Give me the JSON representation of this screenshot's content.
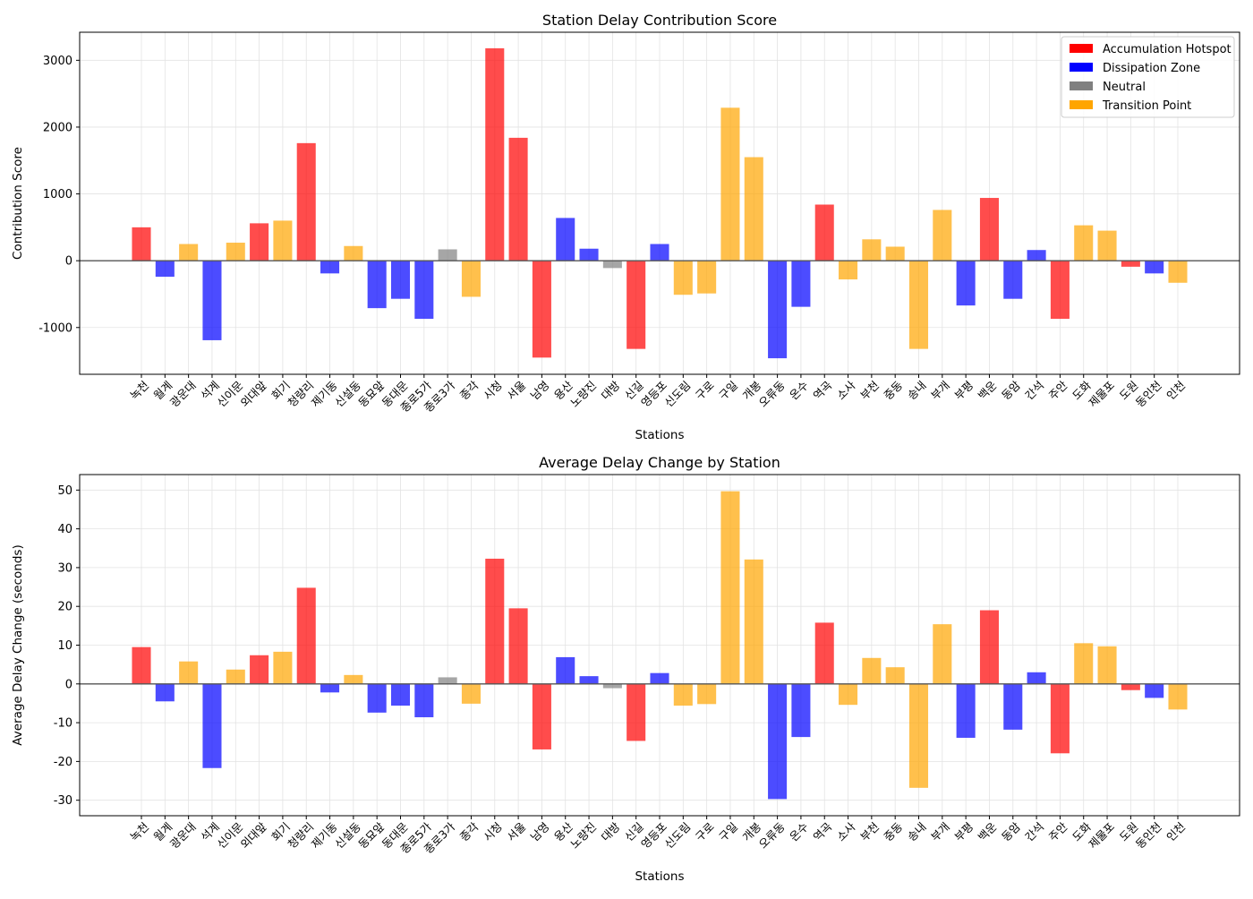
{
  "stations": [
    "녹천",
    "월계",
    "광운대",
    "석계",
    "신이문",
    "외대앞",
    "회기",
    "청량리",
    "제기동",
    "신설동",
    "동묘앞",
    "동대문",
    "종로5가",
    "종로3가",
    "종각",
    "시청",
    "서울",
    "남영",
    "용산",
    "노량진",
    "대방",
    "신길",
    "영등포",
    "신도림",
    "구로",
    "구일",
    "개봉",
    "오류동",
    "온수",
    "역곡",
    "소사",
    "부천",
    "중동",
    "송내",
    "부개",
    "부평",
    "백운",
    "동암",
    "간석",
    "주안",
    "도화",
    "제물포",
    "도원",
    "동인천",
    "인천"
  ],
  "categories": [
    "hotspot",
    "dissipation",
    "transition",
    "dissipation",
    "transition",
    "hotspot",
    "transition",
    "hotspot",
    "dissipation",
    "transition",
    "dissipation",
    "dissipation",
    "dissipation",
    "neutral",
    "transition",
    "hotspot",
    "hotspot",
    "hotspot",
    "dissipation",
    "dissipation",
    "neutral",
    "hotspot",
    "dissipation",
    "transition",
    "transition",
    "transition",
    "transition",
    "dissipation",
    "dissipation",
    "hotspot",
    "transition",
    "transition",
    "transition",
    "transition",
    "transition",
    "dissipation",
    "hotspot",
    "dissipation",
    "dissipation",
    "hotspot",
    "transition",
    "transition",
    "hotspot",
    "dissipation",
    "transition"
  ],
  "legend": [
    {
      "key": "hotspot",
      "label": "Accumulation Hotspot",
      "color": "#ff0000"
    },
    {
      "key": "dissipation",
      "label": "Dissipation Zone",
      "color": "#0000ff"
    },
    {
      "key": "neutral",
      "label": "Neutral",
      "color": "#808080"
    },
    {
      "key": "transition",
      "label": "Transition Point",
      "color": "#ffa500"
    }
  ],
  "chart_data": [
    {
      "type": "bar",
      "title": "Station Delay Contribution Score",
      "xlabel": "Stations",
      "ylabel": "Contribution Score",
      "ylim": [
        -1700,
        3420
      ],
      "yticks": [
        -1000,
        0,
        1000,
        2000,
        3000
      ],
      "ytick_labels": [
        "-1000",
        "0",
        "1000",
        "2000",
        "3000"
      ],
      "grid": true,
      "legend_position": "top-right",
      "values": [
        500,
        -240,
        250,
        -1190,
        270,
        560,
        600,
        1760,
        -190,
        220,
        -710,
        -570,
        -870,
        170,
        -540,
        3180,
        1840,
        -1450,
        640,
        180,
        -110,
        -1320,
        250,
        -510,
        -490,
        2290,
        1550,
        -1460,
        -690,
        840,
        -280,
        320,
        210,
        -1320,
        760,
        -670,
        940,
        -570,
        160,
        -870,
        530,
        450,
        -90,
        -190,
        -330
      ]
    },
    {
      "type": "bar",
      "title": "Average Delay Change by Station",
      "xlabel": "Stations",
      "ylabel": "Average Delay Change (seconds)",
      "ylim": [
        -34,
        54
      ],
      "yticks": [
        -30,
        -20,
        -10,
        0,
        10,
        20,
        30,
        40,
        50
      ],
      "ytick_labels": [
        "-30",
        "-20",
        "-10",
        "0",
        "10",
        "20",
        "30",
        "40",
        "50"
      ],
      "grid": true,
      "values": [
        9.5,
        -4.5,
        5.8,
        -21.7,
        3.7,
        7.4,
        8.3,
        24.8,
        -2.2,
        2.3,
        -7.4,
        -5.6,
        -8.6,
        1.7,
        -5.1,
        32.3,
        19.5,
        -16.9,
        6.9,
        2.0,
        -1.1,
        -14.7,
        2.8,
        -5.6,
        -5.2,
        49.7,
        32.1,
        -29.7,
        -13.7,
        15.8,
        -5.4,
        6.7,
        4.3,
        -26.8,
        15.4,
        -13.9,
        19.0,
        -11.8,
        3.0,
        -17.9,
        10.5,
        9.7,
        -1.6,
        -3.6,
        -6.6
      ]
    }
  ]
}
